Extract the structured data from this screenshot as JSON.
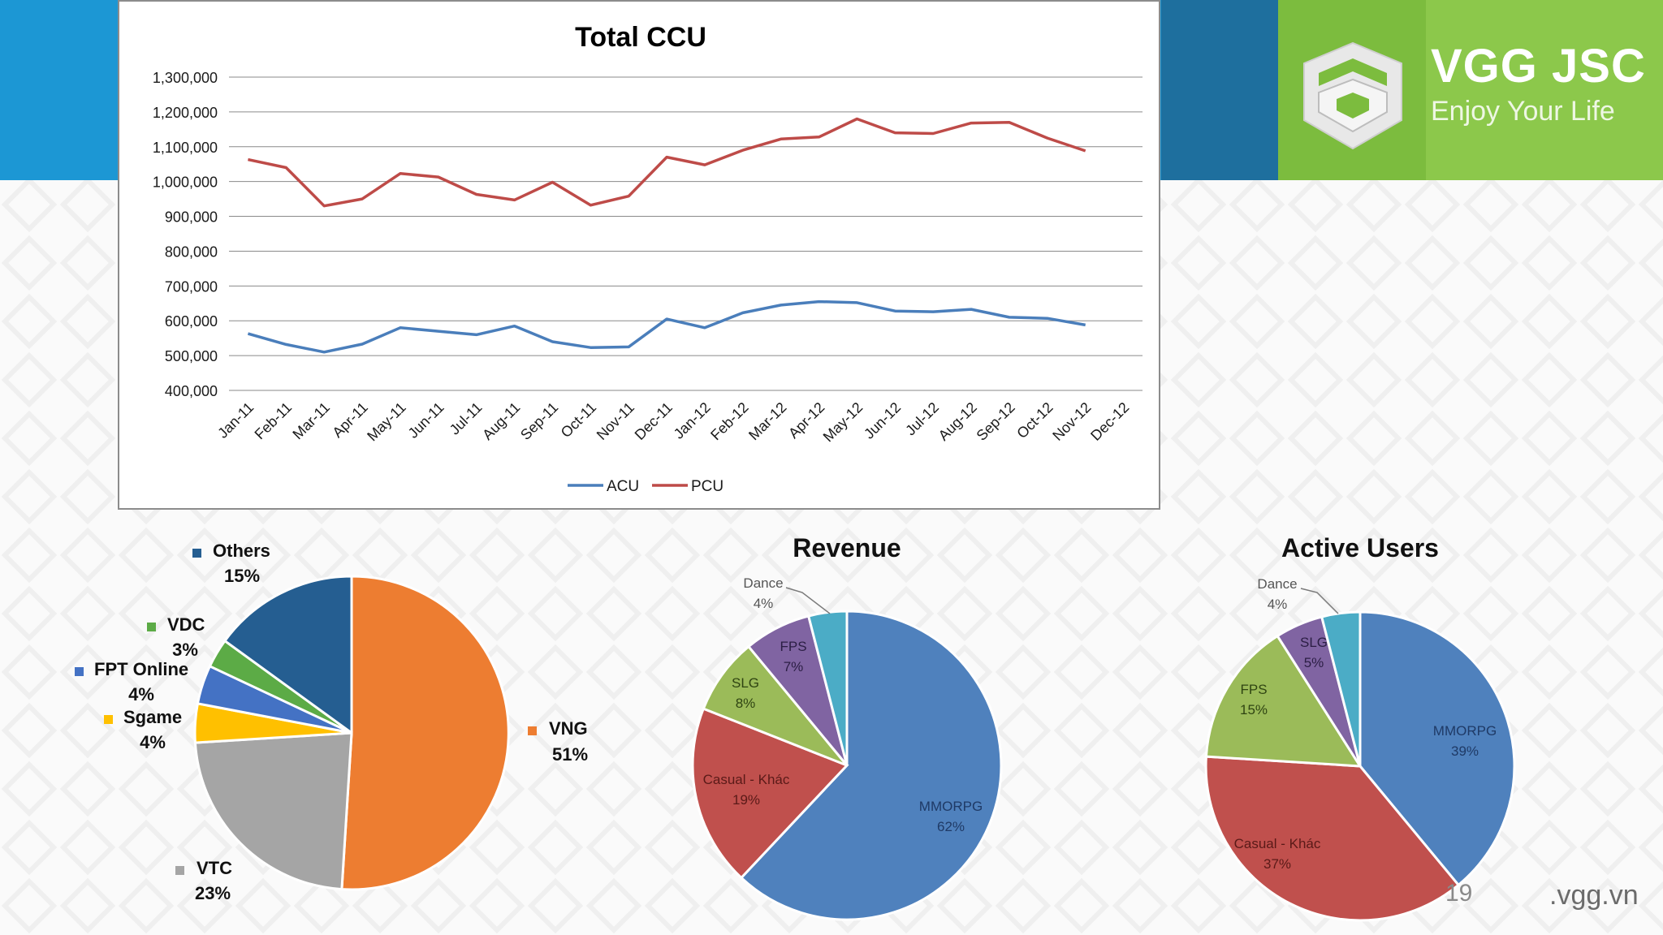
{
  "brand": {
    "name": "VGG JSC",
    "tagline": "Enjoy Your Life",
    "page_number": "19",
    "url": ".vgg.vn"
  },
  "colors": {
    "acu": "#4a7ebb",
    "pcu": "#be4b48",
    "band_blue": "#1c97d4",
    "band_green": "#7cbc3e"
  },
  "chart_data": [
    {
      "type": "line",
      "title": "Total CCU",
      "categories": [
        "Jan-11",
        "Feb-11",
        "Mar-11",
        "Apr-11",
        "May-11",
        "Jun-11",
        "Jul-11",
        "Aug-11",
        "Sep-11",
        "Oct-11",
        "Nov-11",
        "Dec-11",
        "Jan-12",
        "Feb-12",
        "Mar-12",
        "Apr-12",
        "May-12",
        "Jun-12",
        "Jul-12",
        "Aug-12",
        "Sep-12",
        "Oct-12",
        "Nov-12",
        "Dec-12"
      ],
      "ylim": [
        400000,
        1300000
      ],
      "yticks": [
        "400,000",
        "500,000",
        "600,000",
        "700,000",
        "800,000",
        "900,000",
        "1,000,000",
        "1,100,000",
        "1,200,000",
        "1,300,000"
      ],
      "grid": true,
      "legend_position": "bottom",
      "series": [
        {
          "name": "ACU",
          "color": "#4a7ebb",
          "values": [
            563000,
            532000,
            510000,
            533000,
            580000,
            570000,
            560000,
            585000,
            540000,
            523000,
            525000,
            605000,
            580000,
            623000,
            645000,
            655000,
            652000,
            628000,
            626000,
            633000,
            610000,
            607000,
            588000,
            null
          ]
        },
        {
          "name": "PCU",
          "color": "#be4b48",
          "values": [
            1063000,
            1040000,
            930000,
            950000,
            1023000,
            1013000,
            963000,
            947000,
            998000,
            932000,
            958000,
            1070000,
            1048000,
            1090000,
            1122000,
            1128000,
            1180000,
            1140000,
            1138000,
            1168000,
            1170000,
            1125000,
            1088000,
            null
          ]
        }
      ]
    },
    {
      "type": "pie",
      "title": "",
      "slices": [
        {
          "label": "VNG",
          "pct": "51%",
          "value": 51,
          "color": "#ed7d31"
        },
        {
          "label": "VTC",
          "pct": "23%",
          "value": 23,
          "color": "#a5a5a5"
        },
        {
          "label": "Sgame",
          "pct": "4%",
          "value": 4,
          "color": "#ffc000"
        },
        {
          "label": "FPT Online",
          "pct": "4%",
          "value": 4,
          "color": "#4472c4"
        },
        {
          "label": "VDC",
          "pct": "3%",
          "value": 3,
          "color": "#5cab46"
        },
        {
          "label": "Others",
          "pct": "15%",
          "value": 15,
          "color": "#255e91"
        }
      ]
    },
    {
      "type": "pie",
      "title": "Revenue",
      "slices": [
        {
          "label": "MMORPG",
          "pct": "62%",
          "value": 62,
          "color": "#4f81bd"
        },
        {
          "label": "Casual - Khác",
          "pct": "19%",
          "value": 19,
          "color": "#c0504d"
        },
        {
          "label": "SLG",
          "pct": "8%",
          "value": 8,
          "color": "#9bbb59"
        },
        {
          "label": "FPS",
          "pct": "7%",
          "value": 7,
          "color": "#8064a2"
        },
        {
          "label": "Dance",
          "pct": "4%",
          "value": 4,
          "color": "#4bacc6"
        }
      ]
    },
    {
      "type": "pie",
      "title": "Active Users",
      "slices": [
        {
          "label": "MMORPG",
          "pct": "39%",
          "value": 39,
          "color": "#4f81bd"
        },
        {
          "label": "Casual - Khác",
          "pct": "37%",
          "value": 37,
          "color": "#c0504d"
        },
        {
          "label": "FPS",
          "pct": "15%",
          "value": 15,
          "color": "#9bbb59"
        },
        {
          "label": "SLG",
          "pct": "5%",
          "value": 5,
          "color": "#8064a2"
        },
        {
          "label": "Dance",
          "pct": "4%",
          "value": 4,
          "color": "#4bacc6"
        }
      ]
    }
  ]
}
